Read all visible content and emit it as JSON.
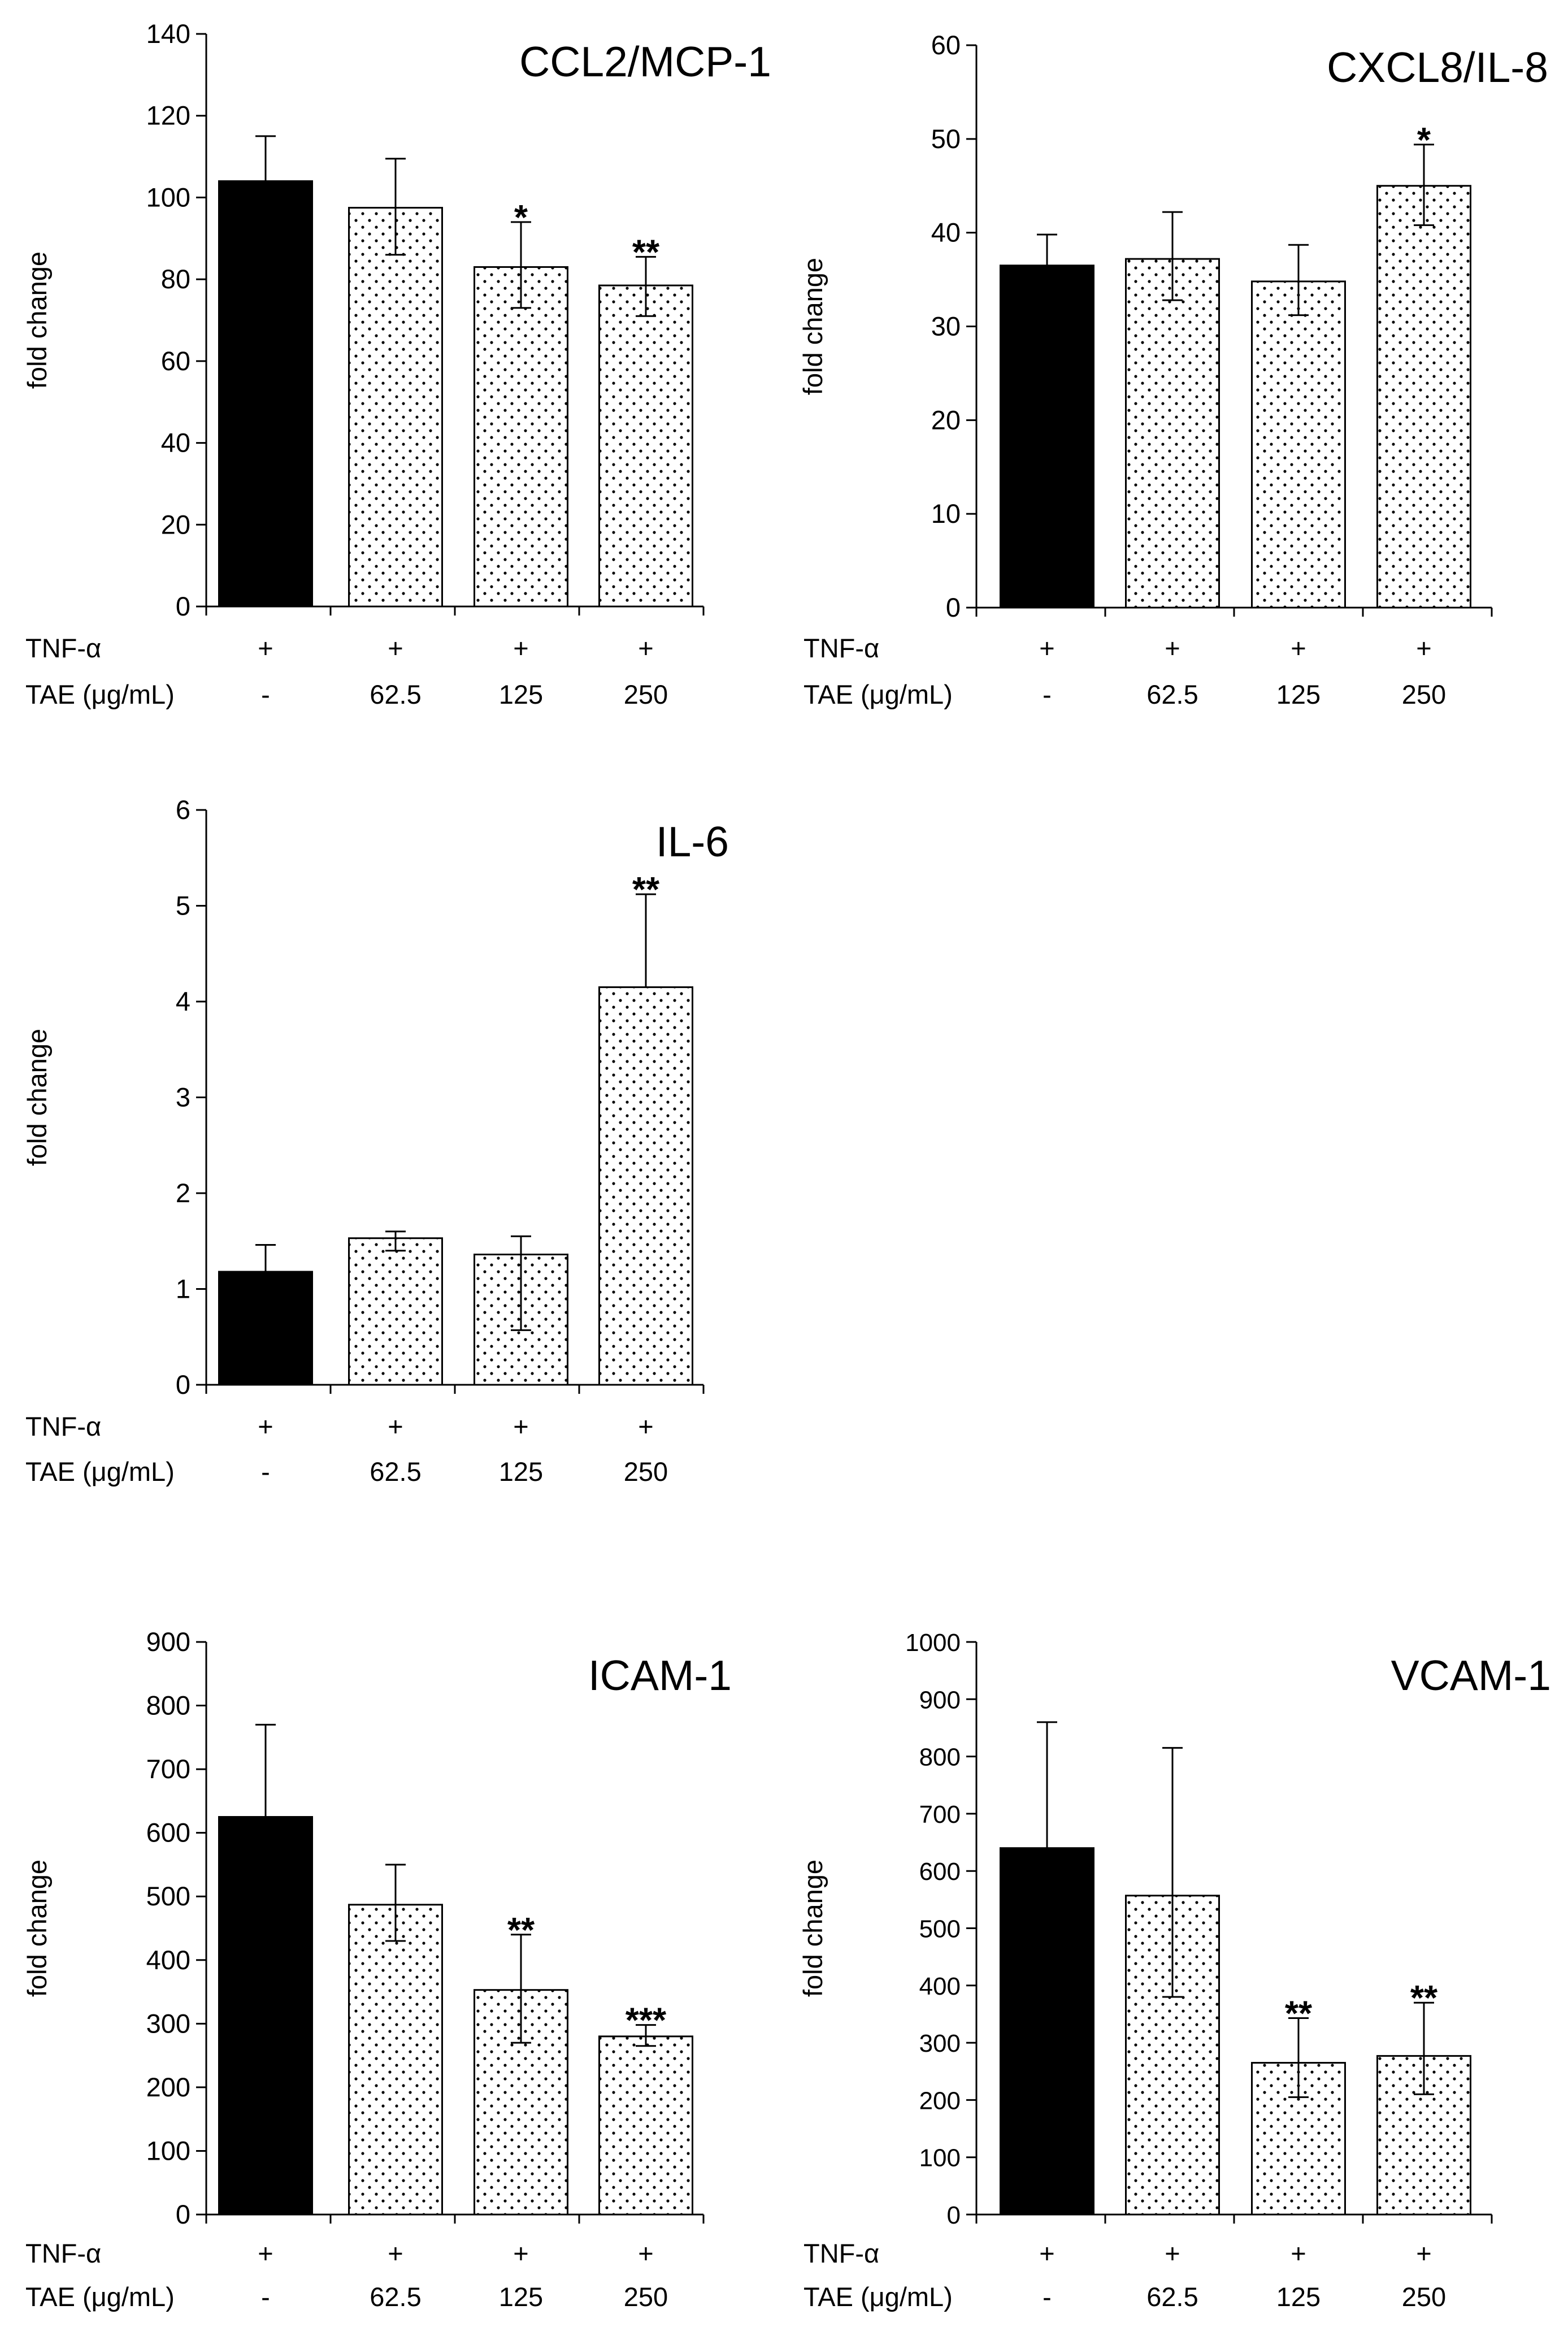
{
  "chart_data": [
    {
      "type": "bar",
      "title": "CCL2/MCP-1",
      "ylabel": "fold change",
      "ylim": [
        0,
        140
      ],
      "yticks": [
        0,
        20,
        40,
        60,
        80,
        100,
        120,
        140
      ],
      "categories": [
        "-",
        "62.5",
        "125",
        "250"
      ],
      "treatment_label": "TNF-α",
      "treatment_values": [
        "+",
        "+",
        "+",
        "+"
      ],
      "dose_label": "TAE (μg/mL)",
      "values": [
        104,
        97.5,
        83,
        78.5
      ],
      "error_upper": [
        115,
        109.5,
        94,
        85.5
      ],
      "error_lower": [
        104,
        86,
        73,
        71
      ],
      "significance": [
        "",
        "",
        "*",
        "**"
      ],
      "bar_styles": [
        "solid",
        "dotted",
        "dotted",
        "dotted"
      ]
    },
    {
      "type": "bar",
      "title": "CXCL8/IL-8",
      "ylabel": "fold change",
      "ylim": [
        0,
        60
      ],
      "yticks": [
        0,
        10,
        20,
        30,
        40,
        50,
        60
      ],
      "categories": [
        "-",
        "62.5",
        "125",
        "250"
      ],
      "treatment_label": "TNF-α",
      "treatment_values": [
        "+",
        "+",
        "+",
        "+"
      ],
      "dose_label": "TAE (μg/mL)",
      "values": [
        36.5,
        37.2,
        34.8,
        45
      ],
      "error_upper": [
        39.8,
        42.2,
        38.7,
        49.4
      ],
      "error_lower": [
        36.5,
        32.8,
        31.2,
        40.8
      ],
      "significance": [
        "",
        "",
        "",
        "*"
      ],
      "bar_styles": [
        "solid",
        "dotted",
        "dotted",
        "dotted"
      ]
    },
    {
      "type": "bar",
      "title": "IL-6",
      "ylabel": "fold change",
      "ylim": [
        0,
        6
      ],
      "yticks": [
        0,
        1,
        2,
        3,
        4,
        5,
        6
      ],
      "categories": [
        "-",
        "62.5",
        "125",
        "250"
      ],
      "treatment_label": "TNF-α",
      "treatment_values": [
        "+",
        "+",
        "+",
        "+"
      ],
      "dose_label": "TAE (μg/mL)",
      "values": [
        1.18,
        1.53,
        1.36,
        4.15
      ],
      "error_upper": [
        1.46,
        1.6,
        1.55,
        5.12
      ],
      "error_lower": [
        1.18,
        1.4,
        0.57,
        4.15
      ],
      "significance": [
        "",
        "",
        "",
        "**"
      ],
      "bar_styles": [
        "solid",
        "dotted",
        "dotted",
        "dotted"
      ]
    },
    {
      "type": "bar",
      "title": "ICAM-1",
      "ylabel": "fold change",
      "ylim": [
        0,
        900
      ],
      "yticks": [
        0,
        100,
        200,
        300,
        400,
        500,
        600,
        700,
        800,
        900
      ],
      "categories": [
        "-",
        "62.5",
        "125",
        "250"
      ],
      "treatment_label": "TNF-α",
      "treatment_values": [
        "+",
        "+",
        "+",
        "+"
      ],
      "dose_label": "TAE (μg/mL)",
      "values": [
        625,
        487,
        353,
        280
      ],
      "error_upper": [
        770,
        550,
        440,
        298
      ],
      "error_lower": [
        625,
        430,
        270,
        265
      ],
      "significance": [
        "",
        "",
        "**",
        "***"
      ],
      "bar_styles": [
        "solid",
        "dotted",
        "dotted",
        "dotted"
      ]
    },
    {
      "type": "bar",
      "title": "VCAM-1",
      "ylabel": "fold change",
      "ylim": [
        0,
        1000
      ],
      "yticks": [
        0,
        100,
        200,
        300,
        400,
        500,
        600,
        700,
        800,
        900,
        1000
      ],
      "categories": [
        "-",
        "62.5",
        "125",
        "250"
      ],
      "treatment_label": "TNF-α",
      "treatment_values": [
        "+",
        "+",
        "+",
        "+"
      ],
      "dose_label": "TAE (μg/mL)",
      "values": [
        640,
        557,
        265,
        277
      ],
      "error_upper": [
        860,
        815,
        343,
        370
      ],
      "error_lower": [
        640,
        380,
        205,
        210
      ],
      "significance": [
        "",
        "",
        "**",
        "**"
      ],
      "bar_styles": [
        "solid",
        "dotted",
        "dotted",
        "dotted"
      ]
    }
  ]
}
